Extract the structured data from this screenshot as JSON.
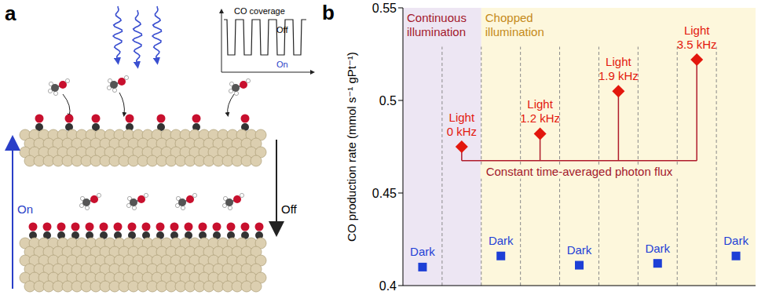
{
  "panel_a": {
    "letter": "a",
    "up_arrow_label": "On",
    "down_arrow_label": "Off",
    "inset": {
      "title": "CO coverage",
      "high_label": "Off",
      "low_label": "On"
    }
  },
  "chart_data": {
    "panel_letter": "b",
    "type": "scatter",
    "y_label": "CO production rate (mmol s⁻¹ gPt⁻¹)",
    "categories": [
      null,
      null,
      null,
      null,
      null,
      null,
      null,
      null,
      null
    ],
    "ylim": [
      0.4,
      0.55
    ],
    "yticks": [
      0.4,
      0.45,
      0.5,
      0.55
    ],
    "tick_labels": "y",
    "regions": [
      {
        "label": "Continuous illumination",
        "start": 0,
        "end": 1,
        "color": "#ede6f3"
      },
      {
        "label": "Chopped illumination",
        "start": 2,
        "end": 8,
        "color": "#fdf7dc"
      }
    ],
    "series": [
      {
        "name": "Dark",
        "color": "#1d3fd6",
        "marker": "square",
        "values": [
          0.41,
          null,
          0.416,
          null,
          0.411,
          null,
          0.412,
          null,
          0.416
        ]
      },
      {
        "name": "Light",
        "color": "#e3170d",
        "marker": "diamond",
        "values": [
          null,
          0.475,
          null,
          0.482,
          null,
          0.505,
          null,
          0.522,
          null
        ],
        "point_labels": [
          null,
          "0 kHz",
          null,
          "1.2 kHz",
          null,
          "1.9 kHz",
          null,
          "3.5 kHz",
          null
        ]
      }
    ],
    "annotations": [
      {
        "text": "Constant time-averaged photon flux",
        "series": "Light"
      }
    ]
  }
}
